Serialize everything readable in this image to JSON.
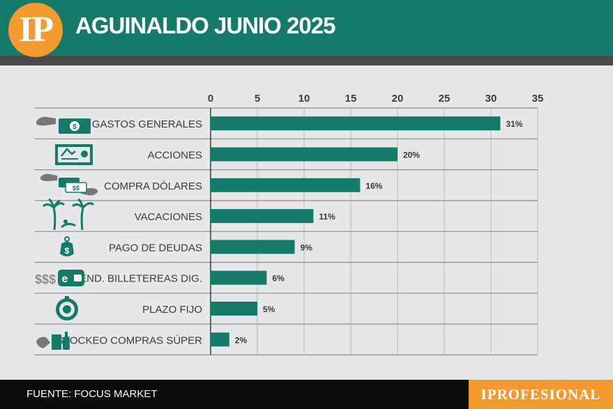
{
  "header": {
    "logo_text": "IP",
    "title": "AGUINALDO JUNIO 2025",
    "band_color": "#157a6a",
    "logo_color": "#f39a2e"
  },
  "chart_data": {
    "type": "bar",
    "orientation": "horizontal",
    "title": "AGUINALDO JUNIO 2025",
    "categories": [
      "GASTOS GENERALES",
      "ACCIONES",
      "COMPRA DÓLARES",
      "VACACIONES",
      "PAGO DE DEUDAS",
      "REND. BILLETEREAS DIG.",
      "PLAZO FIJO",
      "STOCKEO COMPRAS SÚPER"
    ],
    "values": [
      31,
      20,
      16,
      11,
      9,
      6,
      5,
      2
    ],
    "data_labels": [
      "31%",
      "20%",
      "16%",
      "11%",
      "9%",
      "6%",
      "5%",
      "2%"
    ],
    "icons": [
      "cash-hand-icon",
      "stock-certificate-icon",
      "dollar-exchange-icon",
      "palm-vacation-icon",
      "debt-weight-icon",
      "digital-wallet-icon",
      "fixed-term-clock-icon",
      "grocery-icon"
    ],
    "xlim": [
      0,
      35
    ],
    "xticks": [
      "0",
      "5",
      "10",
      "15",
      "20",
      "25",
      "30",
      "35"
    ],
    "grid": true,
    "bar_color": "#157a6a"
  },
  "footer": {
    "source": "FUENTE: FOCUS MARKET",
    "brand": "IPROFESIONAL"
  }
}
